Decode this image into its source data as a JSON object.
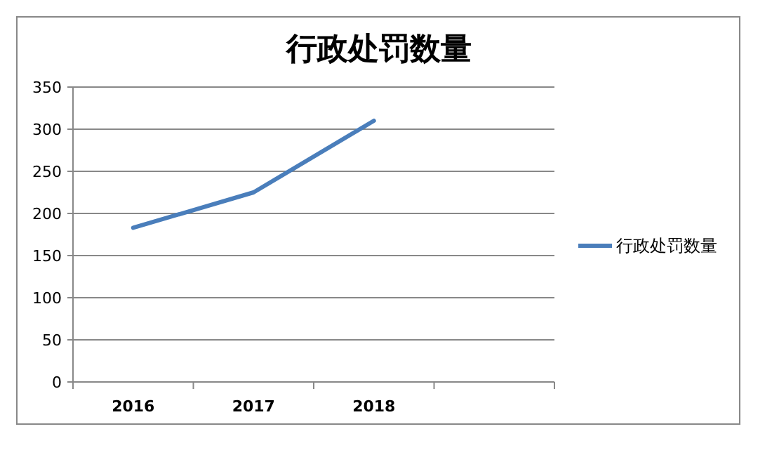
{
  "chart_data": {
    "type": "line",
    "title": "行政处罚数量",
    "categories": [
      "2016",
      "2017",
      "2018",
      null
    ],
    "series": [
      {
        "name": "行政处罚数量",
        "color": "#4a7ebb",
        "values": [
          183,
          225,
          310,
          null
        ]
      }
    ],
    "ylim": [
      0,
      350
    ],
    "yticks": [
      0,
      50,
      100,
      150,
      200,
      250,
      300,
      350
    ],
    "grid": "y",
    "legend": "right",
    "marker": "none",
    "line_style": "solid"
  }
}
